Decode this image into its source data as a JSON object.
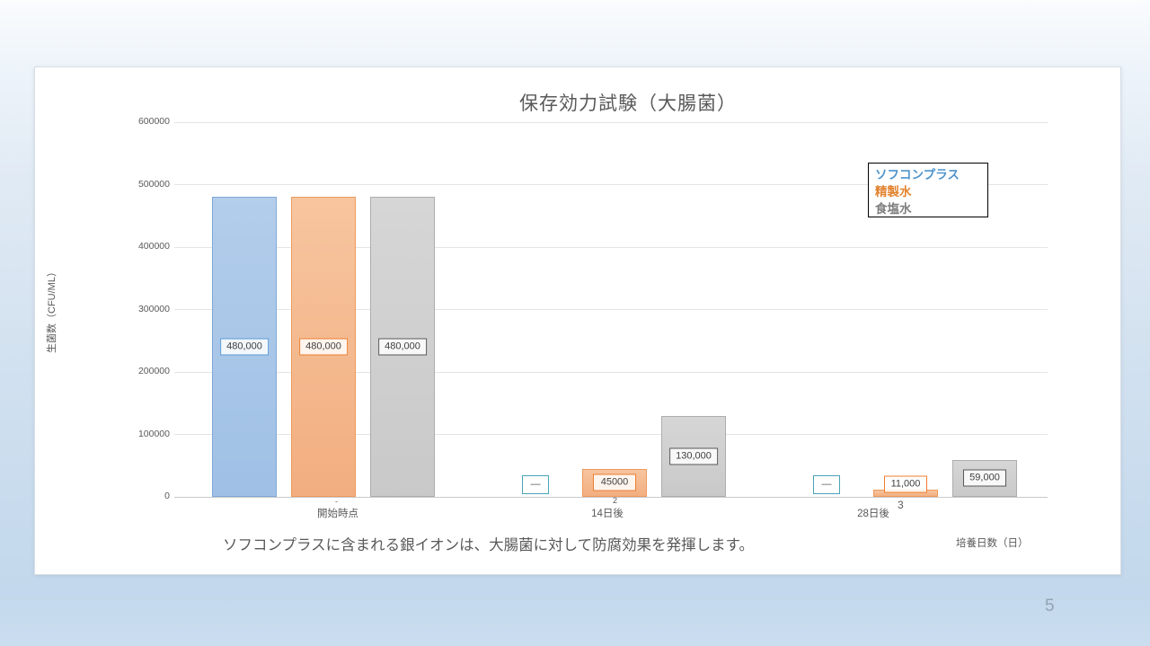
{
  "slide": {
    "caption": "ソフコンプラスに含まれる銀イオンは、大腸菌に対して防腐効果を発揮します。",
    "page_number": "5"
  },
  "chart_data": {
    "type": "bar",
    "title": "保存効力試験（大腸菌）",
    "xlabel": "培養日数（日）",
    "ylabel": "生菌数（CFU/ML）",
    "categories": [
      "開始時点",
      "14日後",
      "28日後"
    ],
    "axis_tick_artifacts": [
      "-",
      "2",
      "3"
    ],
    "ylim": [
      0,
      600000
    ],
    "ytick_labels": [
      "0",
      "100000",
      "200000",
      "300000",
      "400000",
      "500000",
      "600000"
    ],
    "grid": true,
    "legend_position": "top-right",
    "axis_color": "#c9c9c9",
    "grid_color": "#e4e4e4",
    "series": [
      {
        "name": "ソフコンプラス",
        "values": [
          480000,
          null,
          null
        ],
        "data_labels": [
          "480,000",
          "—",
          "—"
        ],
        "fill_top": "#b3cdeb",
        "fill_bottom": "#9fc0e5",
        "bar_border": "#7fa8d6",
        "label_border": "#5b9bd5",
        "legend_color": "#4e94cc",
        "null_marker_border": "#4aa3b8"
      },
      {
        "name": "精製水",
        "values": [
          480000,
          45000,
          11000
        ],
        "data_labels": [
          "480,000",
          "45000",
          "11,000"
        ],
        "fill_top": "#f7c59f",
        "fill_bottom": "#f2ae80",
        "bar_border": "#ee9a5e",
        "label_border": "#ed7d31",
        "legend_color": "#e2822e",
        "null_marker_border": "#4aa3b8"
      },
      {
        "name": "食塩水",
        "values": [
          480000,
          130000,
          59000
        ],
        "data_labels": [
          "480,000",
          "130,000",
          "59,000"
        ],
        "fill_top": "#d6d6d6",
        "fill_bottom": "#c9c9c9",
        "bar_border": "#adadad",
        "label_border": "#595959",
        "legend_color": "#7f7f7f",
        "null_marker_border": "#4aa3b8"
      }
    ]
  }
}
